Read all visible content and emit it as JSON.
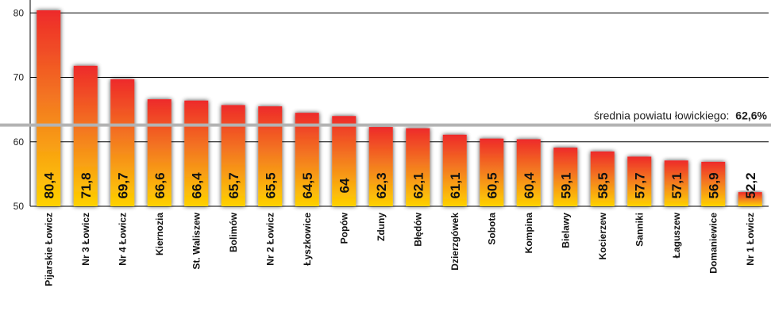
{
  "chart_data": {
    "type": "bar",
    "categories": [
      "Pijarskie Łowicz",
      "Nr 3 Łowicz",
      "Nr 4 Łowicz",
      "Kiernozia",
      "St. Waliszew",
      "Bolimów",
      "Nr 2 Łowicz",
      "Łyszkowice",
      "Popów",
      "Zduny",
      "Błędów",
      "Dzierzgówek",
      "Sobota",
      "Kompina",
      "Bielawy",
      "Kocierzew",
      "Sanniki",
      "Łaguszew",
      "Domaniewice",
      "Nr 1 Łowicz"
    ],
    "values": [
      80.4,
      71.8,
      69.7,
      66.6,
      66.4,
      65.7,
      65.5,
      64.5,
      64,
      62.3,
      62.1,
      61.1,
      60.5,
      60.4,
      59.1,
      58.5,
      57.7,
      57.1,
      56.9,
      52.2
    ],
    "value_labels": [
      "80,4",
      "71,8",
      "69,7",
      "66,6",
      "66,4",
      "65,7",
      "65,5",
      "64,5",
      "64",
      "62,3",
      "62,1",
      "61,1",
      "60,5",
      "60,4",
      "59,1",
      "58,5",
      "57,7",
      "57,1",
      "56,9",
      "52,2"
    ],
    "ylim": [
      50,
      82
    ],
    "yticks": [
      "50",
      "60",
      "70",
      "80"
    ],
    "grid": true,
    "reference_line": {
      "value": 62.6,
      "label": "średnia powiatu łowickiego:",
      "value_label": "62,6%"
    },
    "colors": {
      "bar_top": "#ee2a2a",
      "bar_mid": "#f47f1f",
      "bar_bottom": "#ffd200",
      "reference_line": "#b3b3b3",
      "grid": "#000000"
    }
  }
}
